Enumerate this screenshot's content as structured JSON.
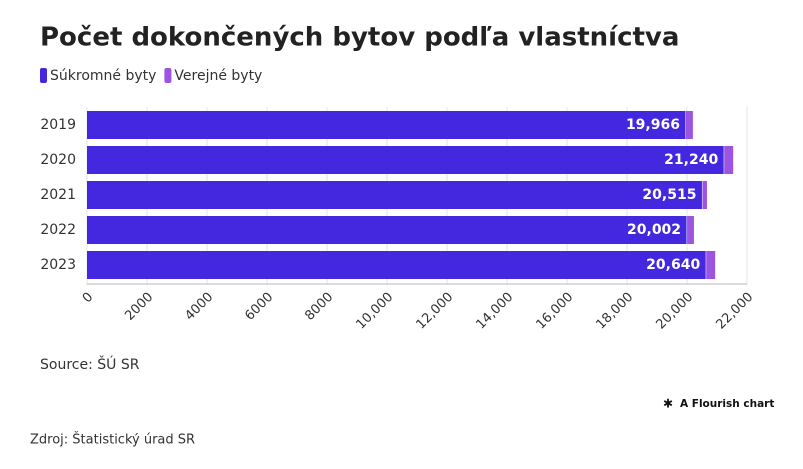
{
  "chart_data": {
    "type": "stacked-bar-horizontal",
    "title": "Počet dokončených bytov podľa vlastníctva",
    "categories": [
      "2019",
      "2020",
      "2021",
      "2022",
      "2023"
    ],
    "series": [
      {
        "name": "Súkromné byty",
        "color": "#4428e0",
        "values": [
          19966,
          21240,
          20515,
          20002,
          20640
        ],
        "value_labels": [
          "19,966",
          "21,240",
          "20,515",
          "20,002",
          "20,640"
        ]
      },
      {
        "name": "Verejné byty",
        "color": "#9b55e0",
        "values": [
          230,
          300,
          150,
          230,
          300
        ]
      }
    ],
    "xlim": [
      0,
      22000
    ],
    "xticks": [
      0,
      2000,
      4000,
      6000,
      8000,
      {
        "value": 10000,
        "label": "10,000"
      },
      {
        "value": 12000,
        "label": "12,000"
      },
      {
        "value": 14000,
        "label": "14,000"
      },
      {
        "value": 16000,
        "label": "16,000"
      },
      {
        "value": 18000,
        "label": "18,000"
      },
      {
        "value": 20000,
        "label": "20,000"
      },
      {
        "value": 22000,
        "label": "22,000"
      }
    ],
    "grid": true,
    "source": "Source: ŠÚ SR",
    "credit": "A Flourish chart"
  },
  "footer": "Zdroj: Štatistický úrad SR"
}
